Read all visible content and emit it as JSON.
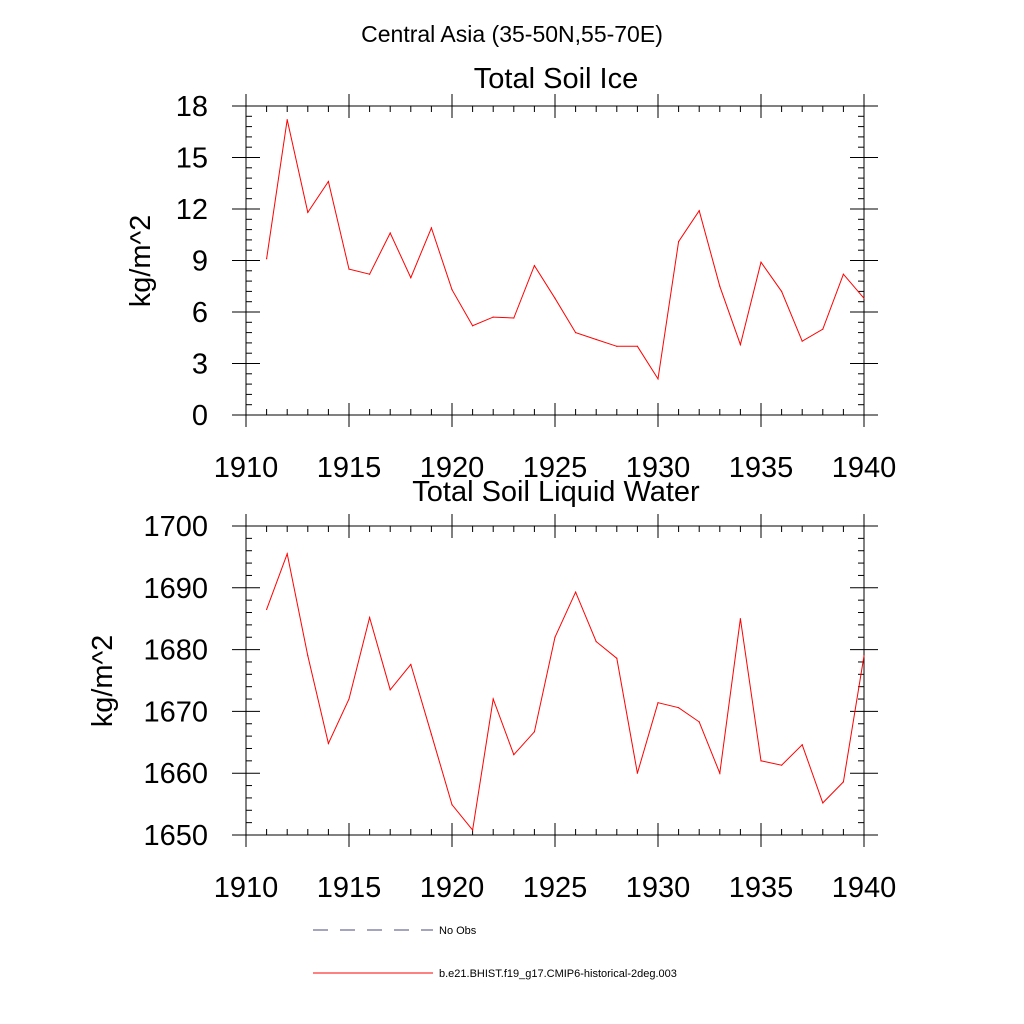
{
  "figure": {
    "suptitle": "Central Asia (35-50N,55-70E)"
  },
  "colors": {
    "model": "#ff0000",
    "obs": "#4a4a7a"
  },
  "legend": {
    "placement": "bottom-center",
    "entries": [
      {
        "label": "No Obs",
        "style": "dashed",
        "color": "#4a4a7a"
      },
      {
        "label": "b.e21.BHIST.f19_g17.CMIP6-historical-2deg.003",
        "style": "solid",
        "color": "#ff0000"
      }
    ]
  },
  "chart_data": [
    {
      "type": "line",
      "title": "Total Soil Ice",
      "xlabel": "",
      "ylabel": "kg/m^2",
      "xlim": [
        1910,
        1940
      ],
      "ylim": [
        0,
        18
      ],
      "xticks": [
        1910,
        1915,
        1920,
        1925,
        1930,
        1935,
        1940
      ],
      "yticks": [
        0,
        3,
        6,
        9,
        12,
        15,
        18
      ],
      "grid": false,
      "x": [
        1911,
        1912,
        1913,
        1914,
        1915,
        1916,
        1917,
        1918,
        1919,
        1920,
        1921,
        1922,
        1923,
        1924,
        1925,
        1926,
        1927,
        1928,
        1929,
        1930,
        1931,
        1932,
        1933,
        1934,
        1935,
        1936,
        1937,
        1938,
        1939,
        1940
      ],
      "series": [
        {
          "name": "b.e21.BHIST.f19_g17.CMIP6-historical-2deg.003",
          "values": [
            9.1,
            17.2,
            11.8,
            13.6,
            8.5,
            8.2,
            10.6,
            8.0,
            10.9,
            7.3,
            5.2,
            5.7,
            5.65,
            8.7,
            6.8,
            4.8,
            4.4,
            4.0,
            4.0,
            2.1,
            10.1,
            11.9,
            7.5,
            4.1,
            8.9,
            7.2,
            4.3,
            5.0,
            8.2,
            6.8
          ]
        }
      ]
    },
    {
      "type": "line",
      "title": "Total Soil Liquid Water",
      "xlabel": "",
      "ylabel": "kg/m^2",
      "xlim": [
        1910,
        1940
      ],
      "ylim": [
        1650,
        1700
      ],
      "xticks": [
        1910,
        1915,
        1920,
        1925,
        1930,
        1935,
        1940
      ],
      "yticks": [
        1650,
        1660,
        1670,
        1680,
        1690,
        1700
      ],
      "grid": false,
      "x": [
        1911,
        1912,
        1913,
        1914,
        1915,
        1916,
        1917,
        1918,
        1919,
        1920,
        1921,
        1922,
        1923,
        1924,
        1925,
        1926,
        1927,
        1928,
        1929,
        1930,
        1931,
        1932,
        1933,
        1934,
        1935,
        1936,
        1937,
        1938,
        1939,
        1940
      ],
      "series": [
        {
          "name": "b.e21.BHIST.f19_g17.CMIP6-historical-2deg.003",
          "values": [
            1686.5,
            1695.5,
            1679.0,
            1664.8,
            1672.0,
            1685.2,
            1673.5,
            1677.6,
            1666.3,
            1654.9,
            1650.8,
            1672.0,
            1663.0,
            1666.7,
            1682.0,
            1689.3,
            1681.3,
            1678.6,
            1660.0,
            1671.4,
            1670.6,
            1668.3,
            1660.0,
            1685.0,
            1662.0,
            1661.3,
            1664.6,
            1655.2,
            1658.6,
            1679.0
          ]
        }
      ]
    }
  ]
}
